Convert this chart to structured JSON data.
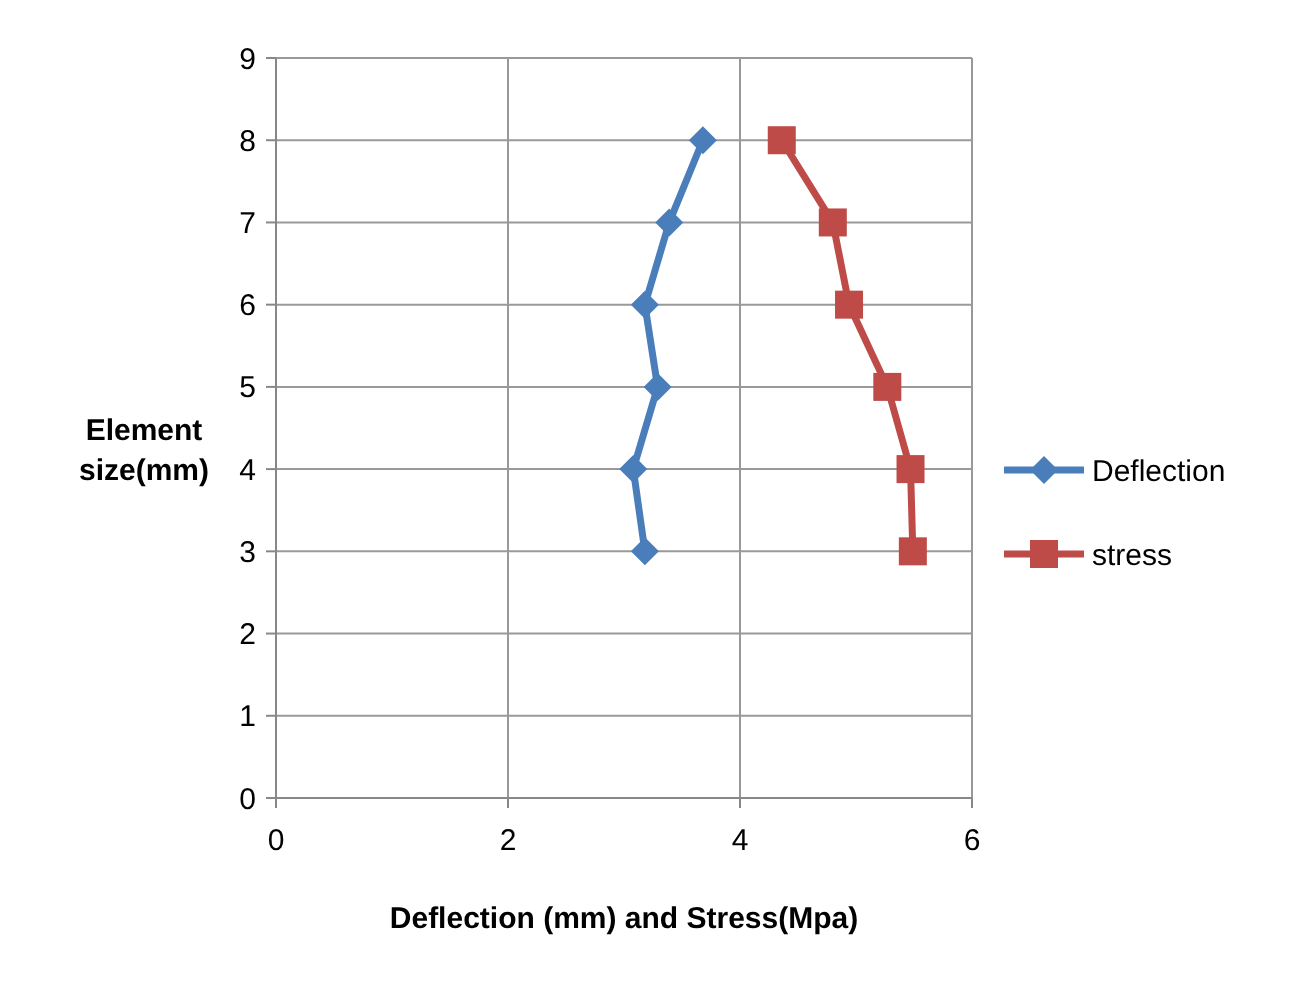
{
  "chart_data": {
    "type": "line",
    "xlabel": "Deflection (mm) and Stress(Mpa)",
    "ylabel": "Element size(mm)",
    "xlim": [
      0,
      6
    ],
    "xticks": [
      0,
      2,
      4,
      6
    ],
    "ylim": [
      0,
      9
    ],
    "yticks": [
      0,
      1,
      2,
      3,
      4,
      5,
      6,
      7,
      8,
      9
    ],
    "grid": true,
    "legend": "right",
    "series": [
      {
        "name": "Deflection",
        "color": "#4a7ebb",
        "marker": "diamond",
        "x": [
          3.68,
          3.39,
          3.18,
          3.29,
          3.08,
          3.18
        ],
        "values": [
          8,
          7,
          6,
          5,
          4,
          3
        ]
      },
      {
        "name": "stress",
        "color": "#be4b48",
        "marker": "square",
        "x": [
          4.36,
          4.8,
          4.94,
          5.27,
          5.47,
          5.49
        ],
        "values": [
          8,
          7,
          6,
          5,
          4,
          3
        ]
      }
    ]
  }
}
